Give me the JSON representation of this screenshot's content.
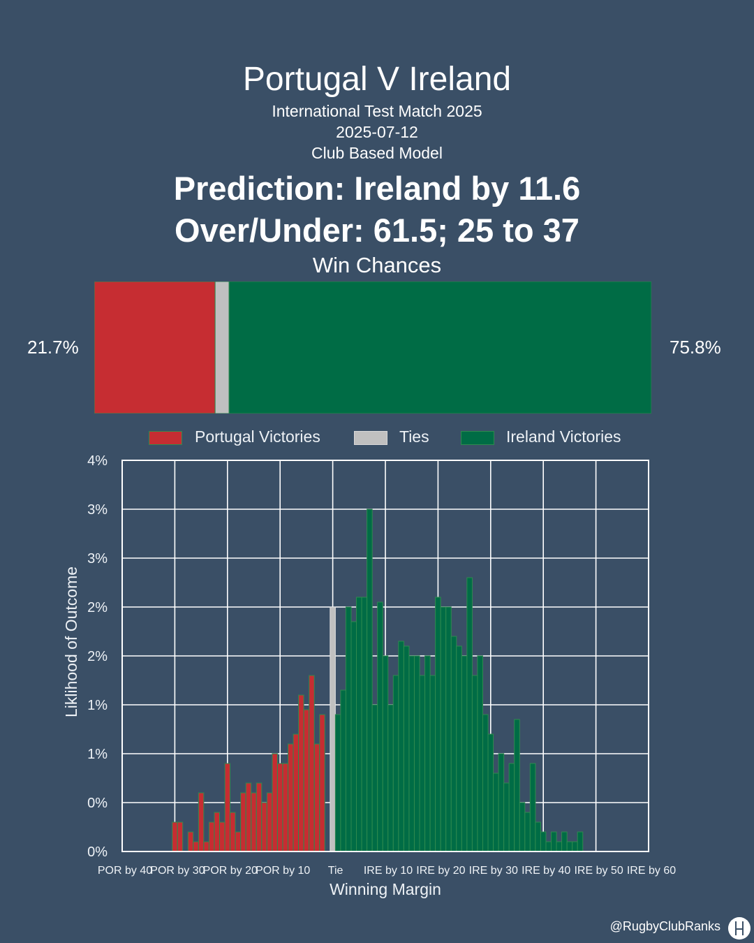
{
  "header": {
    "title": "Portugal V Ireland",
    "subtitle": "International Test Match 2025",
    "date": "2025-07-12",
    "model": "Club Based Model",
    "prediction": "Prediction: Ireland by 11.6",
    "over_under": "Over/Under: 61.5; 25 to 37"
  },
  "win_chances": {
    "title": "Win Chances",
    "portugal_pct": 21.7,
    "tie_pct": 2.5,
    "ireland_pct": 75.8,
    "portugal_label": "21.7%",
    "ireland_label": "75.8%"
  },
  "legend": {
    "portugal": "Portugal Victories",
    "ties": "Ties",
    "ireland": "Ireland Victories"
  },
  "colors": {
    "background": "#3a4f66",
    "portugal": "#c62d32",
    "tie": "#c0c0c0",
    "ireland": "#006c45",
    "bar_edge": "#2f8a4f"
  },
  "footer": {
    "handle": "@RugbyClubRanks",
    "logo_icon": "rugby-posts-icon"
  },
  "chart_data": {
    "type": "bar",
    "xlabel": "Winning Margin",
    "ylabel": "Liklihood of Outcome",
    "xlim": [
      -40,
      60
    ],
    "ylim": [
      0,
      4
    ],
    "grid": true,
    "x_ticks": [
      {
        "x": -40,
        "label": "POR by 40"
      },
      {
        "x": -30,
        "label": "POR by 30"
      },
      {
        "x": -20,
        "label": "POR by 20"
      },
      {
        "x": -10,
        "label": "POR by 10"
      },
      {
        "x": 0,
        "label": "Tie"
      },
      {
        "x": 10,
        "label": "IRE by 10"
      },
      {
        "x": 20,
        "label": "IRE by 20"
      },
      {
        "x": 30,
        "label": "IRE by 30"
      },
      {
        "x": 40,
        "label": "IRE by 40"
      },
      {
        "x": 50,
        "label": "IRE by 50"
      },
      {
        "x": 60,
        "label": "IRE by 60"
      }
    ],
    "y_ticks": [
      {
        "y": 0,
        "label": "0%"
      },
      {
        "y": 0.5,
        "label": "0%"
      },
      {
        "y": 1,
        "label": "1%"
      },
      {
        "y": 1.5,
        "label": "1%"
      },
      {
        "y": 2,
        "label": "2%"
      },
      {
        "y": 2.5,
        "label": "2%"
      },
      {
        "y": 3,
        "label": "3%"
      },
      {
        "y": 3.5,
        "label": "3%"
      },
      {
        "y": 4,
        "label": "4%"
      }
    ],
    "series": [
      {
        "name": "Portugal Victories",
        "x": [
          -30,
          -29,
          -28,
          -27,
          -26,
          -25,
          -24,
          -23,
          -22,
          -21,
          -20,
          -19,
          -18,
          -17,
          -16,
          -15,
          -14,
          -13,
          -12,
          -11,
          -10,
          -9,
          -8,
          -7,
          -6,
          -5,
          -4,
          -3,
          -2,
          -1
        ],
        "values": [
          0.3,
          0.3,
          0.0,
          0.2,
          0.1,
          0.6,
          0.1,
          0.3,
          0.4,
          0.3,
          0.9,
          0.4,
          0.2,
          0.6,
          0.7,
          0.6,
          0.7,
          0.5,
          0.6,
          1.0,
          0.9,
          0.9,
          1.1,
          1.2,
          1.6,
          1.45,
          1.8,
          1.1,
          1.4,
          0.0
        ]
      },
      {
        "name": "Ties",
        "x": [
          0
        ],
        "values": [
          2.5
        ]
      },
      {
        "name": "Ireland Victories",
        "x": [
          1,
          2,
          3,
          4,
          5,
          6,
          7,
          8,
          9,
          10,
          11,
          12,
          13,
          14,
          15,
          16,
          17,
          18,
          19,
          20,
          21,
          22,
          23,
          24,
          25,
          26,
          27,
          28,
          29,
          30,
          31,
          32,
          33,
          34,
          35,
          36,
          37,
          38,
          39,
          40,
          41,
          42,
          43,
          44,
          45,
          46,
          47,
          48,
          49,
          50,
          51,
          52,
          53,
          54,
          55,
          56,
          57,
          58,
          59,
          60
        ],
        "values": [
          1.4,
          1.65,
          2.5,
          2.35,
          2.6,
          2.6,
          3.5,
          1.5,
          2.55,
          2.0,
          1.5,
          1.8,
          2.15,
          2.1,
          2.0,
          2.0,
          1.8,
          2.0,
          1.8,
          2.6,
          2.5,
          2.5,
          2.2,
          2.1,
          2.0,
          2.8,
          1.8,
          2.0,
          1.4,
          1.2,
          0.8,
          1.0,
          0.7,
          0.9,
          1.35,
          0.5,
          0.4,
          0.9,
          0.3,
          0.2,
          0.1,
          0.2,
          0.1,
          0.2,
          0.1,
          0.1,
          0.2,
          0,
          0,
          0,
          0,
          0,
          0,
          0,
          0,
          0,
          0,
          0,
          0,
          0
        ]
      }
    ]
  }
}
